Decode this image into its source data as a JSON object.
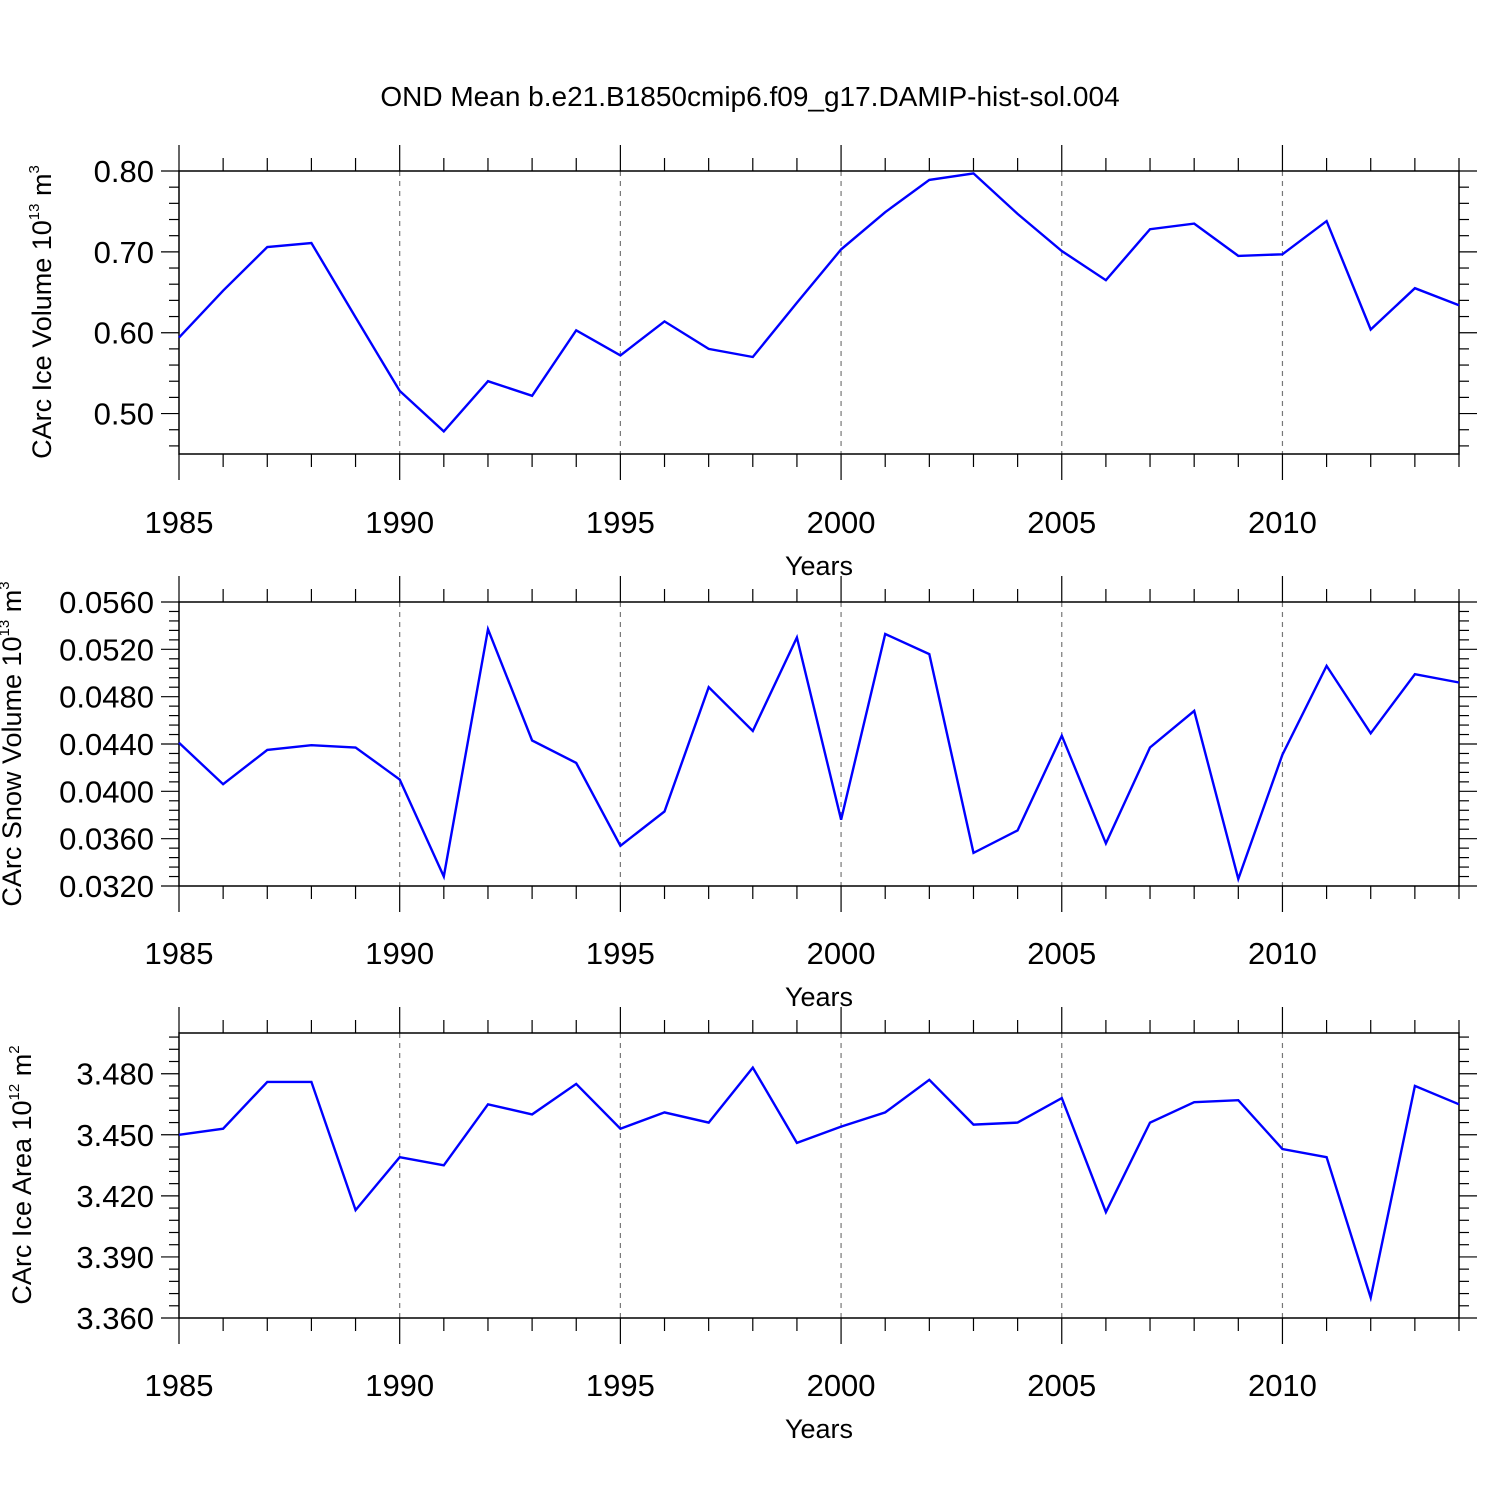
{
  "title": "OND Mean b.e21.B1850cmip6.f09_g17.DAMIP-hist-sol.004",
  "colors": {
    "line": "#0000ff",
    "axis": "#000000",
    "grid": "#777777",
    "background": "#ffffff"
  },
  "chart_data": [
    {
      "type": "line",
      "name": "ice-volume",
      "ylabel_main": "CArc Ice Volume 10",
      "ylabel_sup": "13",
      "ylabel_unit": " m",
      "ylabel_unit_sup": "3",
      "xlabel": "Years",
      "xlim": [
        1985,
        2014
      ],
      "ylim": [
        0.45,
        0.8
      ],
      "xticks": [
        1985,
        1990,
        1995,
        2000,
        2005,
        2010
      ],
      "xtick_labels": [
        "1985",
        "1990",
        "1995",
        "2000",
        "2005",
        "2010"
      ],
      "yticks": [
        0.5,
        0.6,
        0.7,
        0.8
      ],
      "ytick_labels": [
        "0.50",
        "0.60",
        "0.70",
        "0.80"
      ],
      "grid_x": [
        1990,
        1995,
        2000,
        2005,
        2010
      ],
      "x": [
        1985,
        1986,
        1987,
        1988,
        1989,
        1990,
        1991,
        1992,
        1993,
        1994,
        1995,
        1996,
        1997,
        1998,
        1999,
        2000,
        2001,
        2002,
        2003,
        2004,
        2005,
        2006,
        2007,
        2008,
        2009,
        2010,
        2011,
        2012,
        2013,
        2014
      ],
      "series": [
        {
          "name": "OND Mean",
          "values": [
            0.594,
            0.652,
            0.706,
            0.711,
            0.619,
            0.528,
            0.478,
            0.54,
            0.522,
            0.603,
            0.572,
            0.614,
            0.58,
            0.57,
            0.637,
            0.703,
            0.749,
            0.789,
            0.797,
            0.747,
            0.701,
            0.665,
            0.728,
            0.735,
            0.695,
            0.697,
            0.738,
            0.604,
            0.655,
            0.634
          ]
        }
      ]
    },
    {
      "type": "line",
      "name": "snow-volume",
      "ylabel_main": "CArc Snow Volume 10",
      "ylabel_sup": "13",
      "ylabel_unit": " m",
      "ylabel_unit_sup": "3",
      "xlabel": "Years",
      "xlim": [
        1985,
        2014
      ],
      "ylim": [
        0.032,
        0.056
      ],
      "xticks": [
        1985,
        1990,
        1995,
        2000,
        2005,
        2010
      ],
      "xtick_labels": [
        "1985",
        "1990",
        "1995",
        "2000",
        "2005",
        "2010"
      ],
      "yticks": [
        0.032,
        0.036,
        0.04,
        0.044,
        0.048,
        0.052,
        0.056
      ],
      "ytick_labels": [
        "0.0320",
        "0.0360",
        "0.0400",
        "0.0440",
        "0.0480",
        "0.0520",
        "0.0560"
      ],
      "grid_x": [
        1990,
        1995,
        2000,
        2005,
        2010
      ],
      "x": [
        1985,
        1986,
        1987,
        1988,
        1989,
        1990,
        1991,
        1992,
        1993,
        1994,
        1995,
        1996,
        1997,
        1998,
        1999,
        2000,
        2001,
        2002,
        2003,
        2004,
        2005,
        2006,
        2007,
        2008,
        2009,
        2010,
        2011,
        2012,
        2013,
        2014
      ],
      "series": [
        {
          "name": "OND Mean",
          "values": [
            0.0441,
            0.0406,
            0.0435,
            0.0439,
            0.0437,
            0.041,
            0.0328,
            0.0537,
            0.0443,
            0.0424,
            0.0354,
            0.0383,
            0.0488,
            0.0451,
            0.053,
            0.0376,
            0.0533,
            0.0516,
            0.0348,
            0.0367,
            0.0447,
            0.0356,
            0.0437,
            0.0468,
            0.0326,
            0.0431,
            0.0506,
            0.0449,
            0.0499,
            0.0492
          ]
        }
      ]
    },
    {
      "type": "line",
      "name": "ice-area",
      "ylabel_main": "CArc Ice Area 10",
      "ylabel_sup": "12",
      "ylabel_unit": " m",
      "ylabel_unit_sup": "2",
      "xlabel": "Years",
      "xlim": [
        1985,
        2014
      ],
      "ylim": [
        3.36,
        3.5
      ],
      "xticks": [
        1985,
        1990,
        1995,
        2000,
        2005,
        2010
      ],
      "xtick_labels": [
        "1985",
        "1990",
        "1995",
        "2000",
        "2005",
        "2010"
      ],
      "yticks": [
        3.36,
        3.39,
        3.42,
        3.45,
        3.48
      ],
      "ytick_labels": [
        "3.360",
        "3.390",
        "3.420",
        "3.450",
        "3.480"
      ],
      "grid_x": [
        1990,
        1995,
        2000,
        2005,
        2010
      ],
      "x": [
        1985,
        1986,
        1987,
        1988,
        1989,
        1990,
        1991,
        1992,
        1993,
        1994,
        1995,
        1996,
        1997,
        1998,
        1999,
        2000,
        2001,
        2002,
        2003,
        2004,
        2005,
        2006,
        2007,
        2008,
        2009,
        2010,
        2011,
        2012,
        2013,
        2014
      ],
      "series": [
        {
          "name": "OND Mean",
          "values": [
            3.45,
            3.453,
            3.476,
            3.476,
            3.413,
            3.439,
            3.435,
            3.465,
            3.46,
            3.475,
            3.453,
            3.461,
            3.456,
            3.483,
            3.446,
            3.454,
            3.461,
            3.477,
            3.455,
            3.456,
            3.468,
            3.412,
            3.456,
            3.466,
            3.467,
            3.443,
            3.439,
            3.37,
            3.474,
            3.465
          ]
        }
      ]
    }
  ]
}
